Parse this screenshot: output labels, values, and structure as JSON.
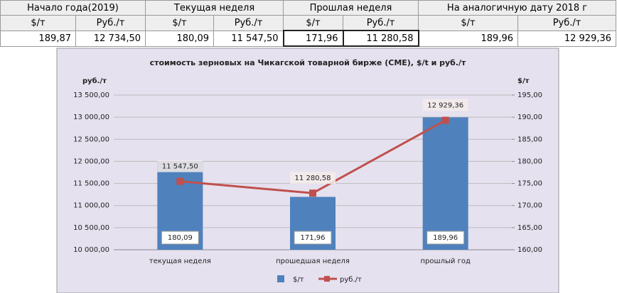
{
  "table": {
    "groups": [
      "Начало года(2019)",
      "Текущая неделя",
      "Прошлая неделя",
      "На аналогичную дату 2018 г"
    ],
    "units": [
      "$/т",
      "Руб./т",
      "$/т",
      "Руб./т",
      "$/т",
      "Руб./т",
      "$/т",
      "Руб./т"
    ],
    "values": [
      "189,87",
      "12 734,50",
      "180,09",
      "11 547,50",
      "171,96",
      "11 280,58",
      "189,96",
      "12 929,36"
    ]
  },
  "chart_data": {
    "type": "bar",
    "title": "стоимость зерновых на Чикагской товарной бирже (CME), $/t и руб./т",
    "y_label": "руб./т",
    "y2_label": "$/т",
    "categories": [
      "текущая неделя",
      "прошедшая неделя",
      "прошлый год"
    ],
    "series": [
      {
        "name": "$/т",
        "type": "bar",
        "axis": "y2",
        "color": "#4f81bd",
        "values": [
          180.09,
          171.96,
          189.96
        ],
        "value_labels": [
          "180,09",
          "171,96",
          "189,96"
        ]
      },
      {
        "name": "руб./т",
        "type": "line",
        "axis": "y",
        "color": "#c0504d",
        "values": [
          11547.5,
          11280.58,
          12929.36
        ],
        "value_labels": [
          "11 547,50",
          "11 280,58",
          "12 929,36"
        ]
      }
    ],
    "ylim": [
      10000,
      13500
    ],
    "yticks": [
      {
        "value": 10000,
        "label": "10 000,00"
      },
      {
        "value": 10500,
        "label": "10 500,00"
      },
      {
        "value": 11000,
        "label": "11 000,00"
      },
      {
        "value": 11500,
        "label": "11 500,00"
      },
      {
        "value": 12000,
        "label": "12 000,00"
      },
      {
        "value": 12500,
        "label": "12 500,00"
      },
      {
        "value": 13000,
        "label": "13 000,00"
      },
      {
        "value": 13500,
        "label": "13 500,00"
      }
    ],
    "y2lim": [
      160,
      195
    ],
    "y2ticks": [
      {
        "value": 160,
        "label": "160,00"
      },
      {
        "value": 165,
        "label": "165,00"
      },
      {
        "value": 170,
        "label": "170,00"
      },
      {
        "value": 175,
        "label": "175,00"
      },
      {
        "value": 180,
        "label": "180,00"
      },
      {
        "value": 185,
        "label": "185,00"
      },
      {
        "value": 190,
        "label": "190,00"
      },
      {
        "value": 195,
        "label": "195,00"
      }
    ],
    "grid": true,
    "legend": "bottom"
  }
}
